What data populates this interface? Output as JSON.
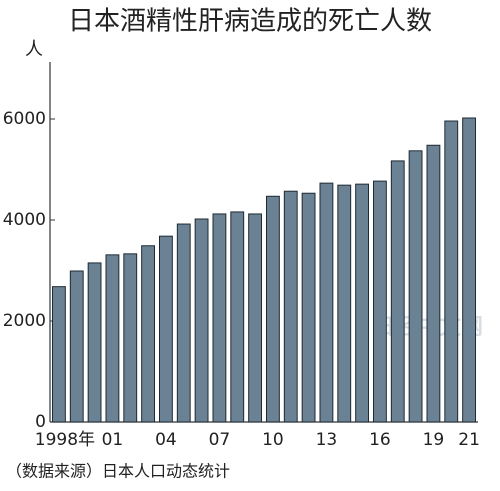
{
  "chart_data": {
    "type": "bar",
    "title": "日本酒精性肝病造成的死亡人数",
    "y_label": "人",
    "source": "（数据来源）日本人口动态统计",
    "watermark": "日经中文网",
    "categories": [
      "1998年",
      null,
      null,
      "01",
      null,
      null,
      "04",
      null,
      null,
      "07",
      null,
      null,
      "10",
      null,
      null,
      "13",
      null,
      null,
      "16",
      null,
      null,
      "19",
      null,
      "21"
    ],
    "values": [
      2680,
      2990,
      3150,
      3310,
      3330,
      3490,
      3680,
      3920,
      4020,
      4120,
      4160,
      4120,
      4470,
      4570,
      4530,
      4730,
      4690,
      4710,
      4770,
      5170,
      5370,
      5480,
      5960,
      6020
    ],
    "color": "#6b8294",
    "ylim": [
      0,
      7000
    ],
    "yticks": [
      0,
      2000,
      4000,
      6000
    ],
    "grid": false
  }
}
